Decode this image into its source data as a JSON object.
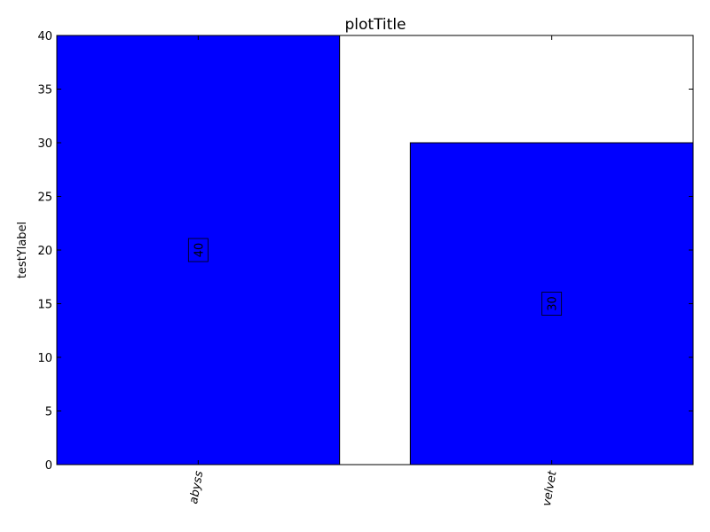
{
  "chart_data": {
    "type": "bar",
    "title": "plotTitle",
    "xlabel": "",
    "ylabel": "testYlabel",
    "categories": [
      "abyss",
      "velvet"
    ],
    "values": [
      40,
      30
    ],
    "data_labels": [
      "40",
      "30"
    ],
    "ylim": [
      0,
      40
    ],
    "yticks": [
      0,
      5,
      10,
      15,
      20,
      25,
      30,
      35,
      40
    ],
    "ytick_labels": [
      "0",
      "5",
      "10",
      "15",
      "20",
      "25",
      "30",
      "35",
      "40"
    ],
    "bar_color": "#0000ff",
    "grid": false,
    "legend": "none"
  }
}
